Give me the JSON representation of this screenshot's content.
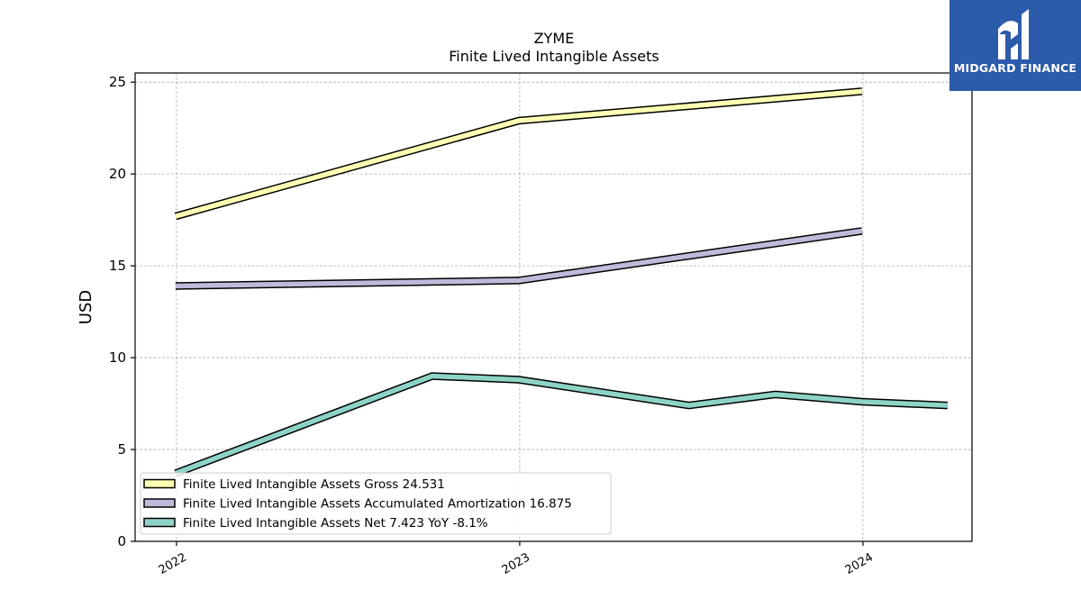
{
  "chart_data": {
    "type": "line",
    "title": "ZYME",
    "subtitle": "Finite Lived Intangible Assets",
    "ylabel": "USD",
    "xlabel": "",
    "ylim": [
      0,
      25.5
    ],
    "xlim": [
      "2021-11-18",
      "2024-04-26"
    ],
    "yticks": [
      0,
      5,
      10,
      15,
      20,
      25
    ],
    "xticks": [
      "2022",
      "2023",
      "2024"
    ],
    "grid": true,
    "legend_position": "lower-left",
    "series": [
      {
        "name": "Finite Lived Intangible Assets Gross",
        "legend_label": "Finite Lived Intangible Assets Gross  24.531",
        "color": "#ffffb3",
        "points": [
          {
            "x": "2021-12-31",
            "y": 17.7
          },
          {
            "x": "2022-12-31",
            "y": 22.9
          },
          {
            "x": "2023-12-31",
            "y": 24.5
          }
        ]
      },
      {
        "name": "Finite Lived Intangible Assets Accumulated Amortization",
        "legend_label": "Finite Lived Intangible Assets Accumulated Amortization  16.875",
        "color": "#bebada",
        "points": [
          {
            "x": "2021-12-31",
            "y": 13.9
          },
          {
            "x": "2022-12-31",
            "y": 14.2
          },
          {
            "x": "2023-12-31",
            "y": 16.9
          }
        ]
      },
      {
        "name": "Finite Lived Intangible Assets Net",
        "legend_label": "Finite Lived Intangible Assets Net  7.423 YoY -8.1%",
        "color": "#8dd3c7",
        "points": [
          {
            "x": "2021-12-31",
            "y": 3.7
          },
          {
            "x": "2022-09-30",
            "y": 9.0
          },
          {
            "x": "2022-12-31",
            "y": 8.8
          },
          {
            "x": "2023-06-30",
            "y": 7.4
          },
          {
            "x": "2023-09-30",
            "y": 8.0
          },
          {
            "x": "2023-12-31",
            "y": 7.6
          },
          {
            "x": "2024-03-31",
            "y": 7.4
          }
        ]
      }
    ]
  },
  "logo": {
    "text": "MIDGARD FINANCE",
    "background": "#2d5bab"
  }
}
